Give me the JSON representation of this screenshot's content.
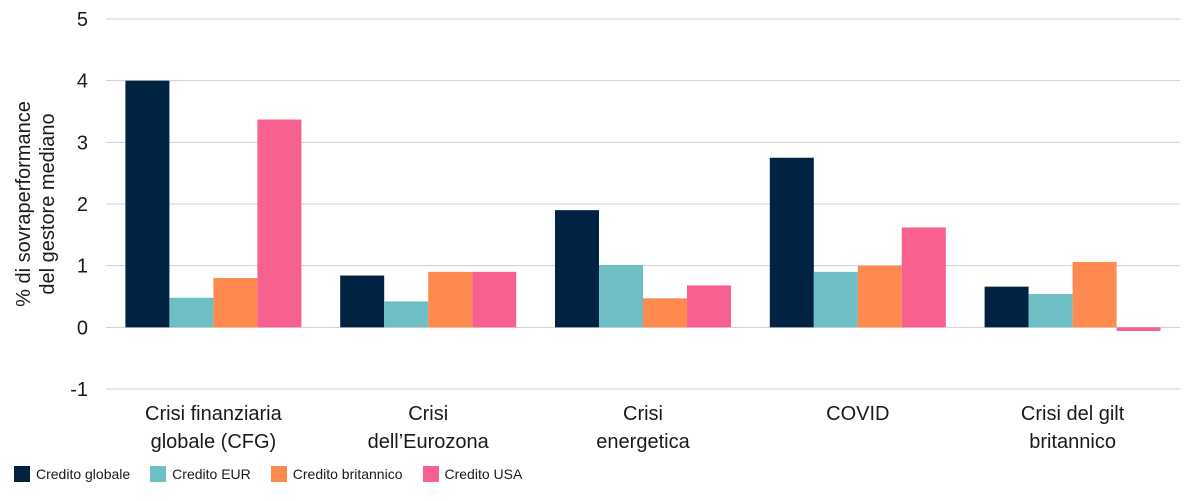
{
  "chart_data": {
    "type": "bar",
    "ylabel": "% di sovraperformance del gestore mediano",
    "ylabel_lines": [
      "% di sovraperformance",
      "del gestore mediano"
    ],
    "ylim": [
      -1,
      5
    ],
    "yticks": [
      "-1",
      "0",
      "1",
      "2",
      "3",
      "4",
      "5"
    ],
    "grid": true,
    "legend_position": "bottom-left",
    "categories": [
      [
        "Crisi finanziaria",
        "globale (CFG)"
      ],
      [
        "Crisi",
        "dell’Eurozona"
      ],
      [
        "Crisi",
        "energetica"
      ],
      [
        "COVID"
      ],
      [
        "Crisi del gilt",
        "britannico"
      ]
    ],
    "series": [
      {
        "name": "Credito globale",
        "color": "#002341",
        "values": [
          4.0,
          0.84,
          1.9,
          2.75,
          0.66
        ]
      },
      {
        "name": "Credito EUR",
        "color": "#6ebec6",
        "values": [
          0.48,
          0.42,
          1.01,
          0.9,
          0.54
        ]
      },
      {
        "name": "Credito britannico",
        "color": "#ff8a50",
        "values": [
          0.8,
          0.9,
          0.47,
          1.0,
          1.06
        ]
      },
      {
        "name": "Credito USA",
        "color": "#f7608f",
        "values": [
          3.37,
          0.9,
          0.68,
          1.62,
          -0.06
        ]
      }
    ]
  }
}
